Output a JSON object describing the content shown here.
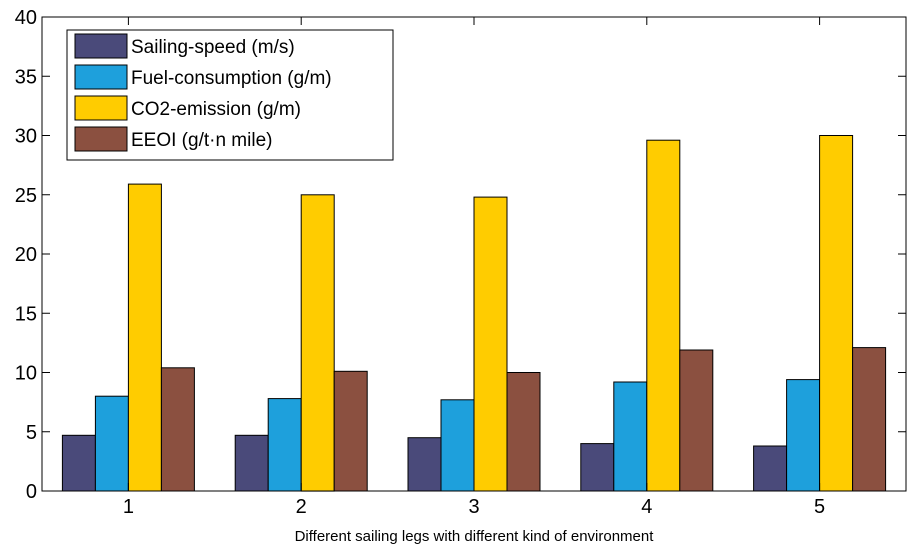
{
  "chart_data": {
    "type": "bar",
    "categories": [
      "1",
      "2",
      "3",
      "4",
      "5"
    ],
    "series": [
      {
        "name": "Sailing-speed (m/s)",
        "values": [
          4.7,
          4.7,
          4.5,
          4.0,
          3.8
        ],
        "color": "#4a4a7a"
      },
      {
        "name": "Fuel-consumption (g/m)",
        "values": [
          8.0,
          7.8,
          7.7,
          9.2,
          9.4
        ],
        "color": "#1ea0dc"
      },
      {
        "name": "CO2-emission (g/m)",
        "values": [
          25.9,
          25.0,
          24.8,
          29.6,
          30.0
        ],
        "color": "#ffcc00"
      },
      {
        "name": "EEOI (g/t·n mile)",
        "values": [
          10.4,
          10.1,
          10.0,
          11.9,
          12.1
        ],
        "color": "#8b5040"
      }
    ],
    "title": "",
    "xlabel": "Different sailing legs with different kind of environment",
    "ylabel": "",
    "ylim": [
      0,
      40
    ],
    "yticks": [
      0,
      5,
      10,
      15,
      20,
      25,
      30,
      35,
      40
    ],
    "grid": false,
    "legend_position": "top-left"
  }
}
